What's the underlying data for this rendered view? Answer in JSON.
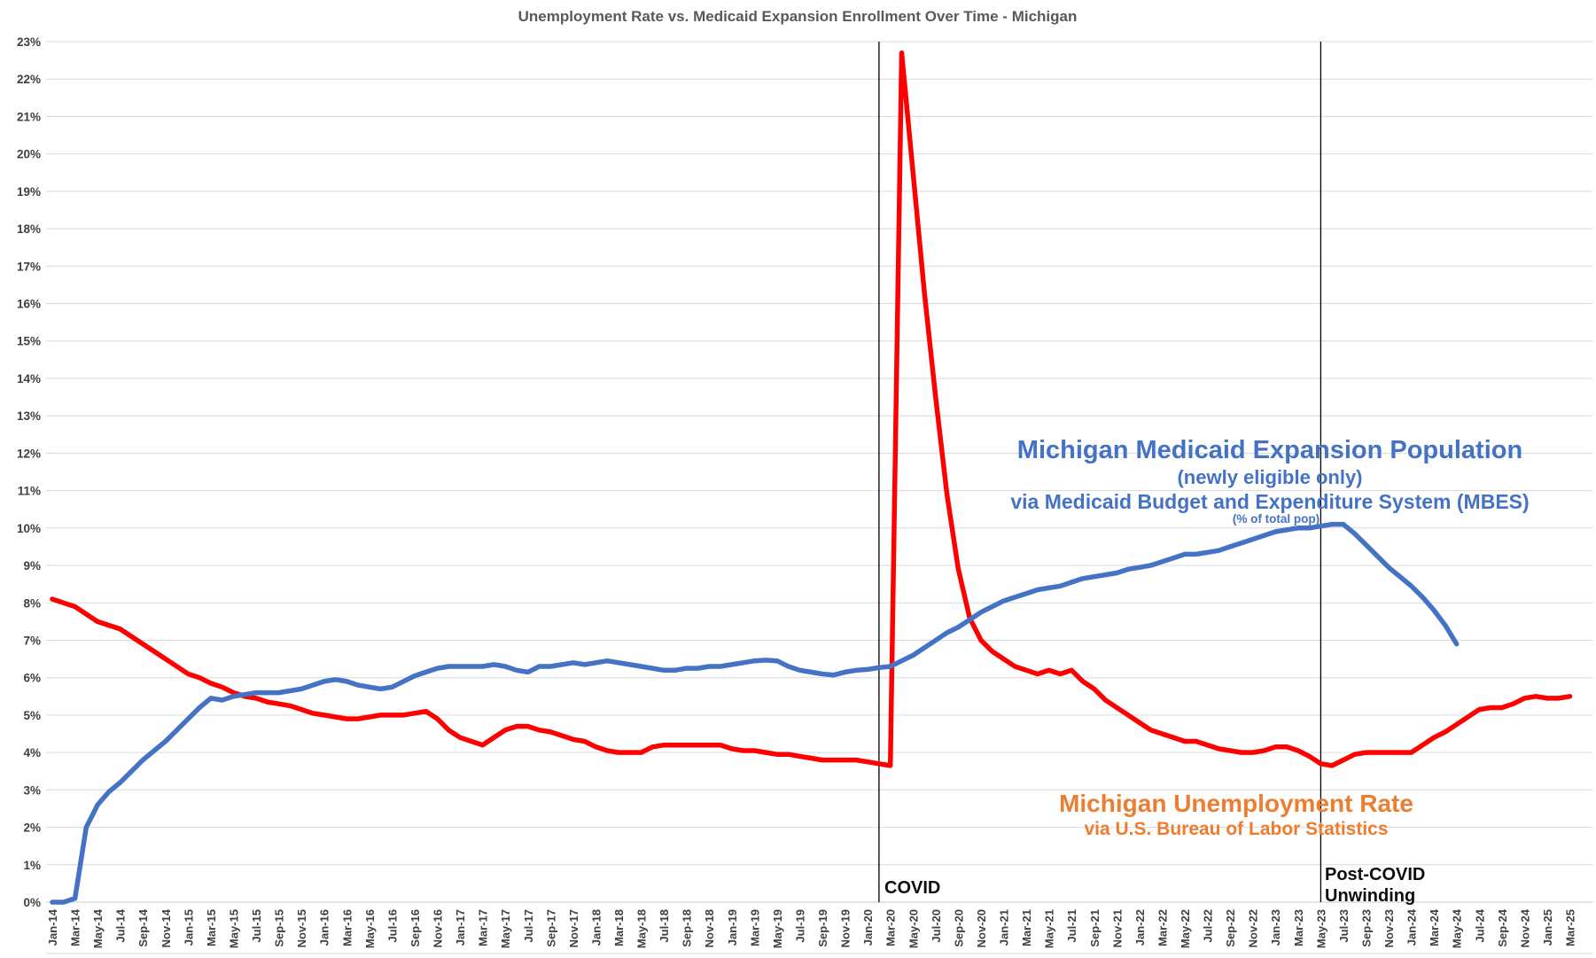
{
  "title": "Unemployment Rate vs. Medicaid Expansion Enrollment Over Time - Michigan",
  "chart_data": {
    "type": "line",
    "title": "Unemployment Rate vs. Medicaid Expansion Enrollment Over Time - Michigan",
    "grid": true,
    "legend_position": "inline-annotations",
    "y_axis": {
      "min": 0,
      "max": 23,
      "step": 1,
      "unit": "%",
      "tick_labels": [
        "0%",
        "1%",
        "2%",
        "3%",
        "4%",
        "5%",
        "6%",
        "7%",
        "8%",
        "9%",
        "10%",
        "11%",
        "12%",
        "13%",
        "14%",
        "15%",
        "16%",
        "17%",
        "18%",
        "19%",
        "20%",
        "21%",
        "22%",
        "23%"
      ]
    },
    "x_axis": {
      "start_month": "Jan-14",
      "end_month": "Mar-25",
      "tick_labels": [
        "Jan-14",
        "Mar-14",
        "May-14",
        "Jul-14",
        "Sep-14",
        "Nov-14",
        "Jan-15",
        "Mar-15",
        "May-15",
        "Jul-15",
        "Sep-15",
        "Nov-15",
        "Jan-16",
        "Mar-16",
        "May-16",
        "Jul-16",
        "Sep-16",
        "Nov-16",
        "Jan-17",
        "Mar-17",
        "May-17",
        "Jul-17",
        "Sep-17",
        "Nov-17",
        "Jan-18",
        "Mar-18",
        "May-18",
        "Jul-18",
        "Sep-18",
        "Nov-18",
        "Jan-19",
        "Mar-19",
        "May-19",
        "Jul-19",
        "Sep-19",
        "Nov-19",
        "Jan-20",
        "Mar-20",
        "May-20",
        "Jul-20",
        "Sep-20",
        "Nov-20",
        "Jan-21",
        "Mar-21",
        "May-21",
        "Jul-21",
        "Sep-21",
        "Nov-21",
        "Jan-22",
        "Mar-22",
        "May-22",
        "Jul-22",
        "Sep-22",
        "Nov-22",
        "Jan-23",
        "Mar-23",
        "May-23",
        "Jul-23",
        "Sep-23",
        "Nov-23",
        "Jan-24",
        "Mar-24",
        "May-24",
        "Jul-24",
        "Sep-24",
        "Nov-24",
        "Jan-25",
        "Mar-25"
      ]
    },
    "series": [
      {
        "name": "Michigan Unemployment Rate",
        "label_lines": [
          "Michigan Unemployment Rate",
          "via U.S. Bureau of Labor Statistics"
        ],
        "color": "#FF0000",
        "label_color": "#ED7D31",
        "start_month": "Jan-14",
        "values": [
          8.1,
          8.0,
          7.9,
          7.7,
          7.5,
          7.4,
          7.3,
          7.1,
          6.9,
          6.7,
          6.5,
          6.3,
          6.1,
          6.0,
          5.85,
          5.75,
          5.6,
          5.5,
          5.45,
          5.35,
          5.3,
          5.25,
          5.15,
          5.05,
          5.0,
          4.95,
          4.9,
          4.9,
          4.95,
          5.0,
          5.0,
          5.0,
          5.05,
          5.1,
          4.9,
          4.6,
          4.4,
          4.3,
          4.2,
          4.4,
          4.6,
          4.7,
          4.7,
          4.6,
          4.55,
          4.45,
          4.35,
          4.3,
          4.15,
          4.05,
          4.0,
          4.0,
          4.0,
          4.15,
          4.2,
          4.2,
          4.2,
          4.2,
          4.2,
          4.2,
          4.1,
          4.05,
          4.05,
          4.0,
          3.95,
          3.95,
          3.9,
          3.85,
          3.8,
          3.8,
          3.8,
          3.8,
          3.75,
          3.7,
          3.65,
          22.7,
          19.5,
          16.3,
          13.5,
          10.9,
          8.9,
          7.6,
          7.0,
          6.7,
          6.5,
          6.3,
          6.2,
          6.1,
          6.2,
          6.1,
          6.2,
          5.9,
          5.7,
          5.4,
          5.2,
          5.0,
          4.8,
          4.6,
          4.5,
          4.4,
          4.3,
          4.3,
          4.2,
          4.1,
          4.05,
          4.0,
          4.0,
          4.05,
          4.15,
          4.15,
          4.05,
          3.9,
          3.7,
          3.65,
          3.8,
          3.95,
          4.0,
          4.0,
          4.0,
          4.0,
          4.0,
          4.2,
          4.4,
          4.55,
          4.75,
          4.95,
          5.15,
          5.2,
          5.2,
          5.3,
          5.45,
          5.5,
          5.45,
          5.45,
          5.5
        ]
      },
      {
        "name": "Michigan Medicaid Expansion Population",
        "label_lines": [
          "Michigan Medicaid Expansion Population",
          "(newly eligible only)",
          "via Medicaid Budget and Expenditure System (MBES)",
          "(% of total pop)"
        ],
        "color": "#4472C4",
        "label_color": "#4472C4",
        "start_month": "Jan-14",
        "values": [
          0.0,
          0.0,
          0.1,
          2.0,
          2.6,
          2.95,
          3.2,
          3.5,
          3.8,
          4.05,
          4.3,
          4.6,
          4.9,
          5.2,
          5.45,
          5.4,
          5.5,
          5.55,
          5.6,
          5.6,
          5.6,
          5.65,
          5.7,
          5.8,
          5.9,
          5.95,
          5.9,
          5.8,
          5.75,
          5.7,
          5.75,
          5.9,
          6.05,
          6.15,
          6.25,
          6.3,
          6.3,
          6.3,
          6.3,
          6.35,
          6.3,
          6.2,
          6.15,
          6.3,
          6.3,
          6.35,
          6.4,
          6.35,
          6.4,
          6.45,
          6.4,
          6.35,
          6.3,
          6.25,
          6.2,
          6.2,
          6.25,
          6.25,
          6.3,
          6.3,
          6.35,
          6.4,
          6.45,
          6.47,
          6.45,
          6.3,
          6.2,
          6.15,
          6.1,
          6.07,
          6.15,
          6.2,
          6.22,
          6.27,
          6.3,
          6.45,
          6.6,
          6.8,
          7.0,
          7.2,
          7.35,
          7.55,
          7.75,
          7.9,
          8.05,
          8.15,
          8.25,
          8.35,
          8.4,
          8.45,
          8.55,
          8.65,
          8.7,
          8.75,
          8.8,
          8.9,
          8.95,
          9.0,
          9.1,
          9.2,
          9.3,
          9.3,
          9.35,
          9.4,
          9.5,
          9.6,
          9.7,
          9.8,
          9.9,
          9.95,
          10.0,
          10.0,
          10.05,
          10.1,
          10.1,
          9.85,
          9.55,
          9.25,
          8.95,
          8.7,
          8.45,
          8.15,
          7.8,
          7.4,
          6.9
        ]
      }
    ],
    "annotations": [
      {
        "name": "covid",
        "month": "Feb-20",
        "lines": [
          "COVID"
        ]
      },
      {
        "name": "post-covid-unwinding",
        "month": "May-23",
        "lines": [
          "Post-COVID",
          "Unwinding"
        ]
      }
    ]
  }
}
